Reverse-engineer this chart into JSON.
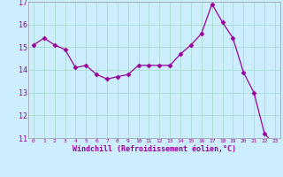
{
  "x": [
    0,
    1,
    2,
    3,
    4,
    5,
    6,
    7,
    8,
    9,
    10,
    11,
    12,
    13,
    14,
    15,
    16,
    17,
    18,
    19,
    20,
    21,
    22,
    23
  ],
  "y": [
    15.1,
    15.4,
    15.1,
    14.9,
    14.1,
    14.2,
    13.8,
    13.6,
    13.7,
    13.8,
    14.2,
    14.2,
    14.2,
    14.2,
    14.7,
    15.1,
    15.6,
    16.9,
    16.1,
    15.4,
    13.9,
    13.0,
    11.2,
    10.7
  ],
  "line_color": "#990099",
  "marker": "D",
  "marker_size": 2.5,
  "bg_color": "#cceeff",
  "grid_color": "#aaddcc",
  "xlabel": "Windchill (Refroidissement éolien,°C)",
  "ylabel": "",
  "ylim": [
    11,
    17
  ],
  "xlim": [
    -0.5,
    23.5
  ],
  "yticks": [
    11,
    12,
    13,
    14,
    15,
    16,
    17
  ],
  "xticks": [
    0,
    1,
    2,
    3,
    4,
    5,
    6,
    7,
    8,
    9,
    10,
    11,
    12,
    13,
    14,
    15,
    16,
    17,
    18,
    19,
    20,
    21,
    22,
    23
  ],
  "tick_color": "#990099",
  "label_color": "#990099",
  "spine_color": "#999999"
}
